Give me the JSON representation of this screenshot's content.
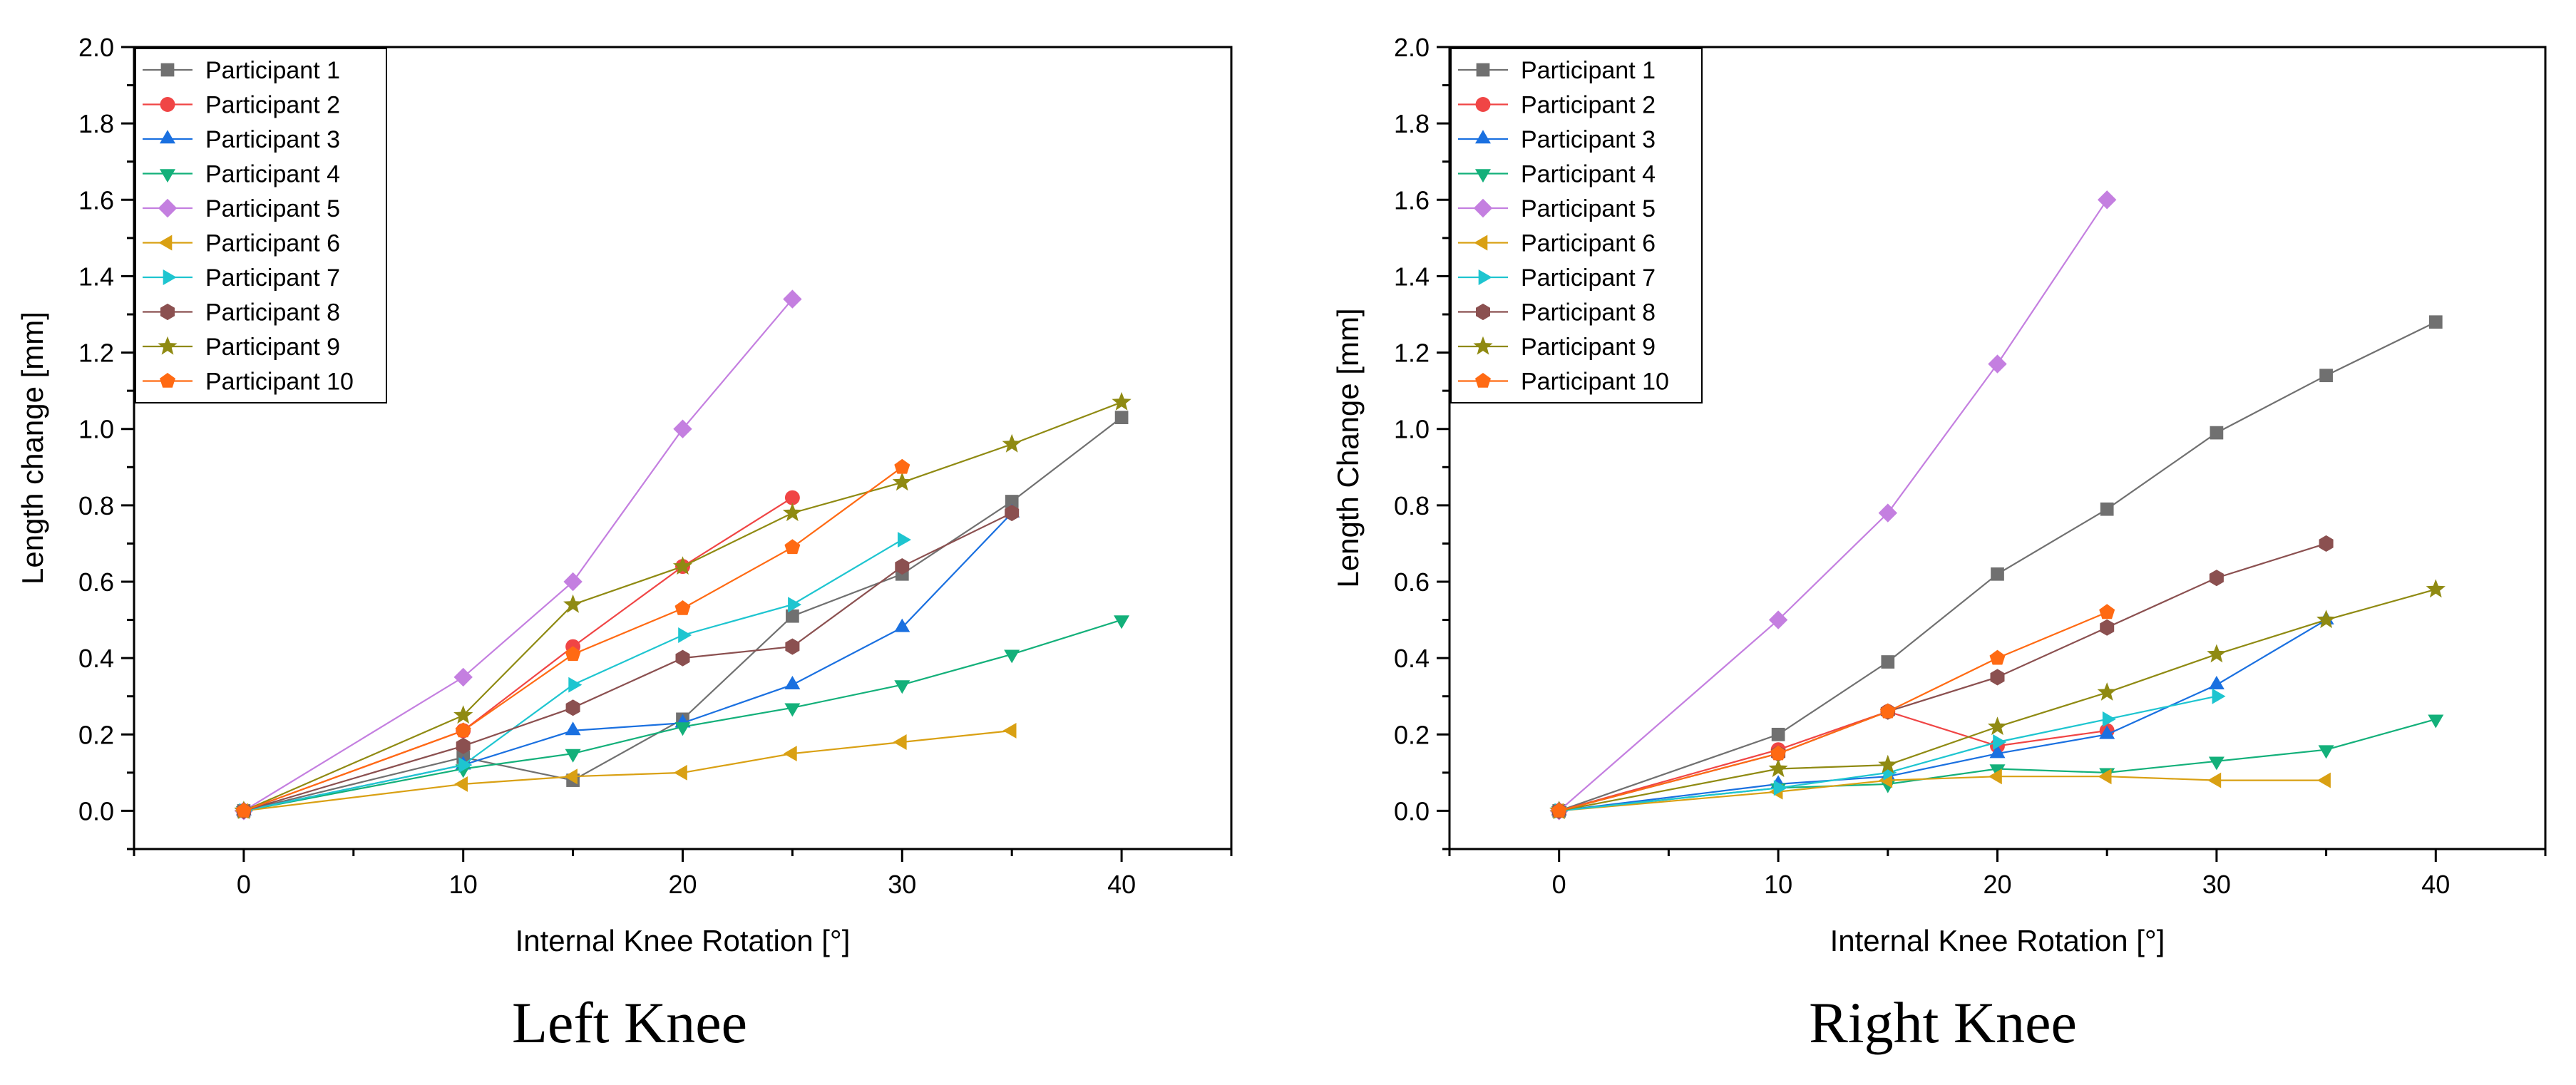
{
  "figure": {
    "captions": [
      "Left Knee",
      "Right Knee"
    ]
  },
  "chart_data": [
    {
      "type": "line",
      "title": "Left Knee",
      "xlabel": "Internal Knee Rotation [°]",
      "ylabel": "Length change [mm]",
      "xlim": [
        -5,
        45
      ],
      "ylim": [
        -0.1,
        2.0
      ],
      "xticks": [
        0,
        10,
        20,
        30,
        40
      ],
      "yticks": [
        0.0,
        0.2,
        0.4,
        0.6,
        0.8,
        1.0,
        1.2,
        1.4,
        1.6,
        1.8,
        2.0
      ],
      "grid": false,
      "legend_position": "top-left",
      "series": [
        {
          "name": "Participant 1",
          "color": "#707070",
          "marker": "square",
          "x": [
            0,
            10,
            15,
            20,
            25,
            30,
            35,
            40
          ],
          "y": [
            0,
            0.14,
            0.08,
            0.24,
            0.51,
            0.62,
            0.81,
            1.03
          ]
        },
        {
          "name": "Participant 2",
          "color": "#f04545",
          "marker": "circle",
          "x": [
            0,
            10,
            15,
            20,
            25
          ],
          "y": [
            0,
            0.21,
            0.43,
            0.64,
            0.82
          ]
        },
        {
          "name": "Participant 3",
          "color": "#1a70e0",
          "marker": "triangle-up",
          "x": [
            0,
            10,
            15,
            20,
            25,
            30,
            35
          ],
          "y": [
            0,
            0.12,
            0.21,
            0.23,
            0.33,
            0.48,
            0.78
          ]
        },
        {
          "name": "Participant 4",
          "color": "#13b07a",
          "marker": "triangle-down",
          "x": [
            0,
            10,
            15,
            20,
            25,
            30,
            35,
            40
          ],
          "y": [
            0,
            0.11,
            0.15,
            0.22,
            0.27,
            0.33,
            0.41,
            0.5
          ]
        },
        {
          "name": "Participant 5",
          "color": "#c47fe0",
          "marker": "diamond",
          "x": [
            0,
            10,
            15,
            20,
            25
          ],
          "y": [
            0,
            0.35,
            0.6,
            1.0,
            1.34
          ]
        },
        {
          "name": "Participant 6",
          "color": "#d9a013",
          "marker": "triangle-left",
          "x": [
            0,
            10,
            15,
            20,
            25,
            30,
            35
          ],
          "y": [
            0,
            0.07,
            0.09,
            0.1,
            0.15,
            0.18,
            0.21
          ]
        },
        {
          "name": "Participant 7",
          "color": "#1ec5d0",
          "marker": "triangle-right",
          "x": [
            0,
            10,
            15,
            20,
            25,
            30
          ],
          "y": [
            0,
            0.12,
            0.33,
            0.46,
            0.54,
            0.71
          ]
        },
        {
          "name": "Participant 8",
          "color": "#8b5050",
          "marker": "hexagon",
          "x": [
            0,
            10,
            15,
            20,
            25,
            30,
            35
          ],
          "y": [
            0,
            0.17,
            0.27,
            0.4,
            0.43,
            0.64,
            0.78
          ]
        },
        {
          "name": "Participant 9",
          "color": "#8f8a12",
          "marker": "star",
          "x": [
            0,
            10,
            15,
            20,
            25,
            30,
            35,
            40
          ],
          "y": [
            0,
            0.25,
            0.54,
            0.64,
            0.78,
            0.86,
            0.96,
            1.07
          ]
        },
        {
          "name": "Participant 10",
          "color": "#ff6a13",
          "marker": "pentagon",
          "x": [
            0,
            10,
            15,
            20,
            25,
            30
          ],
          "y": [
            0,
            0.21,
            0.41,
            0.53,
            0.69,
            0.9
          ]
        }
      ]
    },
    {
      "type": "line",
      "title": "Right Knee",
      "xlabel": "Internal Knee Rotation [°]",
      "ylabel": "Length Change [mm]",
      "xlim": [
        -5,
        45
      ],
      "ylim": [
        -0.1,
        2.0
      ],
      "xticks": [
        0,
        10,
        20,
        30,
        40
      ],
      "yticks": [
        0.0,
        0.2,
        0.4,
        0.6,
        0.8,
        1.0,
        1.2,
        1.4,
        1.6,
        1.8,
        2.0
      ],
      "grid": false,
      "legend_position": "top-left",
      "series": [
        {
          "name": "Participant 1",
          "color": "#707070",
          "marker": "square",
          "x": [
            0,
            10,
            15,
            20,
            25,
            30,
            35,
            40
          ],
          "y": [
            0,
            0.2,
            0.39,
            0.62,
            0.79,
            0.99,
            1.14,
            1.28
          ]
        },
        {
          "name": "Participant 2",
          "color": "#f04545",
          "marker": "circle",
          "x": [
            0,
            10,
            15,
            20,
            25
          ],
          "y": [
            0,
            0.16,
            0.26,
            0.17,
            0.21
          ]
        },
        {
          "name": "Participant 3",
          "color": "#1a70e0",
          "marker": "triangle-up",
          "x": [
            0,
            10,
            15,
            20,
            25,
            30,
            35
          ],
          "y": [
            0,
            0.07,
            0.09,
            0.15,
            0.2,
            0.33,
            0.5
          ]
        },
        {
          "name": "Participant 4",
          "color": "#13b07a",
          "marker": "triangle-down",
          "x": [
            0,
            10,
            15,
            20,
            25,
            30,
            35,
            40
          ],
          "y": [
            0,
            0.06,
            0.07,
            0.11,
            0.1,
            0.13,
            0.16,
            0.24
          ]
        },
        {
          "name": "Participant 5",
          "color": "#c47fe0",
          "marker": "diamond",
          "x": [
            0,
            10,
            15,
            20,
            25
          ],
          "y": [
            0,
            0.5,
            0.78,
            1.17,
            1.6
          ]
        },
        {
          "name": "Participant 6",
          "color": "#d9a013",
          "marker": "triangle-left",
          "x": [
            0,
            10,
            15,
            20,
            25,
            30,
            35
          ],
          "y": [
            0,
            0.05,
            0.08,
            0.09,
            0.09,
            0.08,
            0.08
          ]
        },
        {
          "name": "Participant 7",
          "color": "#1ec5d0",
          "marker": "triangle-right",
          "x": [
            0,
            10,
            15,
            20,
            25,
            30
          ],
          "y": [
            0,
            0.06,
            0.1,
            0.18,
            0.24,
            0.3
          ]
        },
        {
          "name": "Participant 8",
          "color": "#8b5050",
          "marker": "hexagon",
          "x": [
            0,
            10,
            15,
            20,
            25,
            30,
            35
          ],
          "y": [
            0,
            0.15,
            0.26,
            0.35,
            0.48,
            0.61,
            0.7
          ]
        },
        {
          "name": "Participant 9",
          "color": "#8f8a12",
          "marker": "star",
          "x": [
            0,
            10,
            15,
            20,
            25,
            30,
            35,
            40
          ],
          "y": [
            0,
            0.11,
            0.12,
            0.22,
            0.31,
            0.41,
            0.5,
            0.58
          ]
        },
        {
          "name": "Participant 10",
          "color": "#ff6a13",
          "marker": "pentagon",
          "x": [
            0,
            10,
            15,
            20,
            25
          ],
          "y": [
            0,
            0.15,
            0.26,
            0.4,
            0.52
          ]
        }
      ]
    }
  ]
}
